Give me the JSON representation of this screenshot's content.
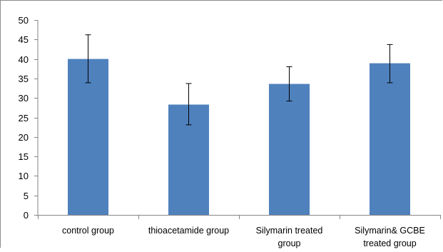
{
  "chart_data": {
    "type": "bar",
    "categories": [
      [
        "control group"
      ],
      [
        "thioacetamide group"
      ],
      [
        "Silymarin treated",
        "group"
      ],
      [
        "Silymarin& GCBE",
        "treated group"
      ]
    ],
    "values": [
      40.0,
      28.3,
      33.6,
      38.9
    ],
    "error_high": [
      46.2,
      33.7,
      38.0,
      43.7
    ],
    "error_low": [
      33.9,
      23.1,
      29.2,
      33.9
    ],
    "ylim": [
      0,
      50
    ],
    "y_ticks": [
      0,
      5,
      10,
      15,
      20,
      25,
      30,
      35,
      40,
      45,
      50
    ],
    "grid": false,
    "legend": false,
    "bar_color": "#4f81bd",
    "error_bar_color": "#000000",
    "axis_color": "#868686"
  }
}
